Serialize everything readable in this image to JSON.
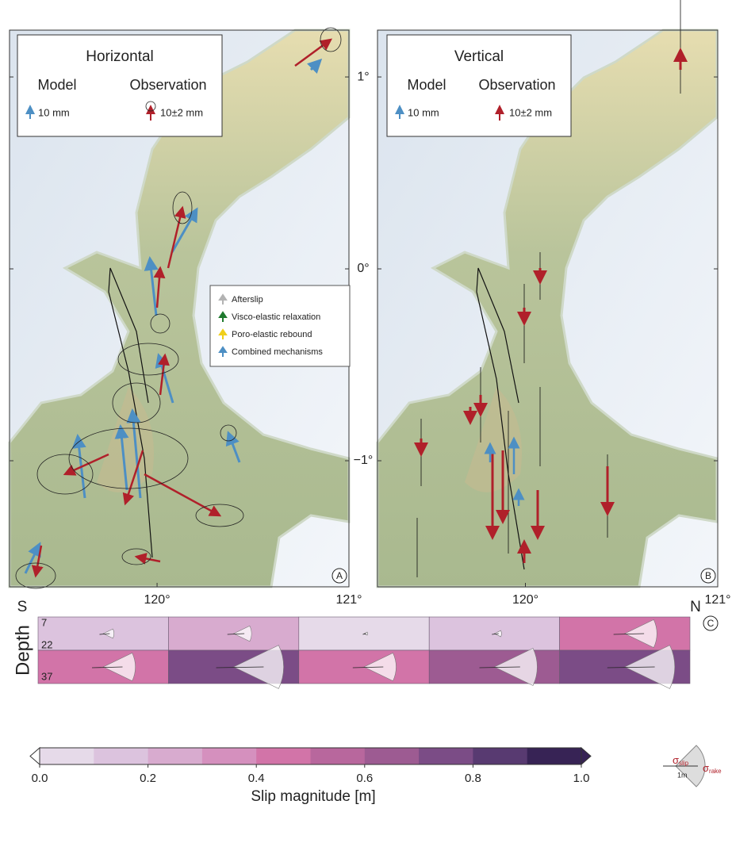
{
  "panels": [
    {
      "label": "A",
      "title": "Horizontal",
      "model": "Model",
      "observation": "Observation",
      "model_scale": "10 mm",
      "obs_scale": "10±2 mm"
    },
    {
      "label": "B",
      "title": "Vertical",
      "model": "Model",
      "observation": "Observation",
      "model_scale": "10 mm",
      "obs_scale": "10±2 mm"
    }
  ],
  "map_axes": {
    "xlim": [
      119.231,
      121
    ],
    "ylim": [
      -1.657,
      1.244
    ],
    "xticks": [
      {
        "value": 120,
        "label": "120°"
      },
      {
        "value": 121,
        "label": "121°"
      }
    ],
    "yticks": [
      {
        "value": 1,
        "label": "1°"
      },
      {
        "value": 0,
        "label": "0°"
      },
      {
        "value": -1,
        "label": "−1°"
      }
    ]
  },
  "mechanisms": [
    {
      "name": "Afterslip",
      "color": "#b3b3b3"
    },
    {
      "name": "Visco-elastic relaxation",
      "color": "#1f7a2e"
    },
    {
      "name": "Poro-elastic rebound",
      "color": "#f0cf1a"
    },
    {
      "name": "Combined mechanisms",
      "color": "#4d8fc4"
    }
  ],
  "chart_data": {
    "type": "slip-grid",
    "label": "C",
    "left": "S",
    "right": "N",
    "ylabel": "Depth",
    "ylim": [
      7,
      37
    ],
    "yticks": [
      7,
      22,
      37
    ],
    "rows": [
      {
        "values": [
          0.15,
          0.25,
          0.05,
          0.1,
          0.45
        ]
      },
      {
        "values": [
          0.45,
          0.7,
          0.45,
          0.6,
          0.7
        ]
      }
    ],
    "colorbar": {
      "title": "Slip magnitude [m]",
      "lim": [
        0,
        1
      ],
      "colors": [
        "#e6dae9",
        "#dcc3de",
        "#d8abcf",
        "#d590be",
        "#d274a8",
        "#b8679d",
        "#9d5b92",
        "#7b4c86",
        "#583a71",
        "#372355"
      ],
      "ticks": [
        {
          "value": 0,
          "label": "0.0"
        },
        {
          "value": 0.2,
          "label": "0.2"
        },
        {
          "value": 0.4,
          "label": "0.4"
        },
        {
          "value": 0.6,
          "label": "0.6"
        },
        {
          "value": 0.8,
          "label": "0.8"
        },
        {
          "value": 1,
          "label": "1.0"
        }
      ]
    },
    "inset": {
      "sigma": "σ",
      "slip": "slip",
      "rake": "rake",
      "scale": "1m"
    }
  }
}
